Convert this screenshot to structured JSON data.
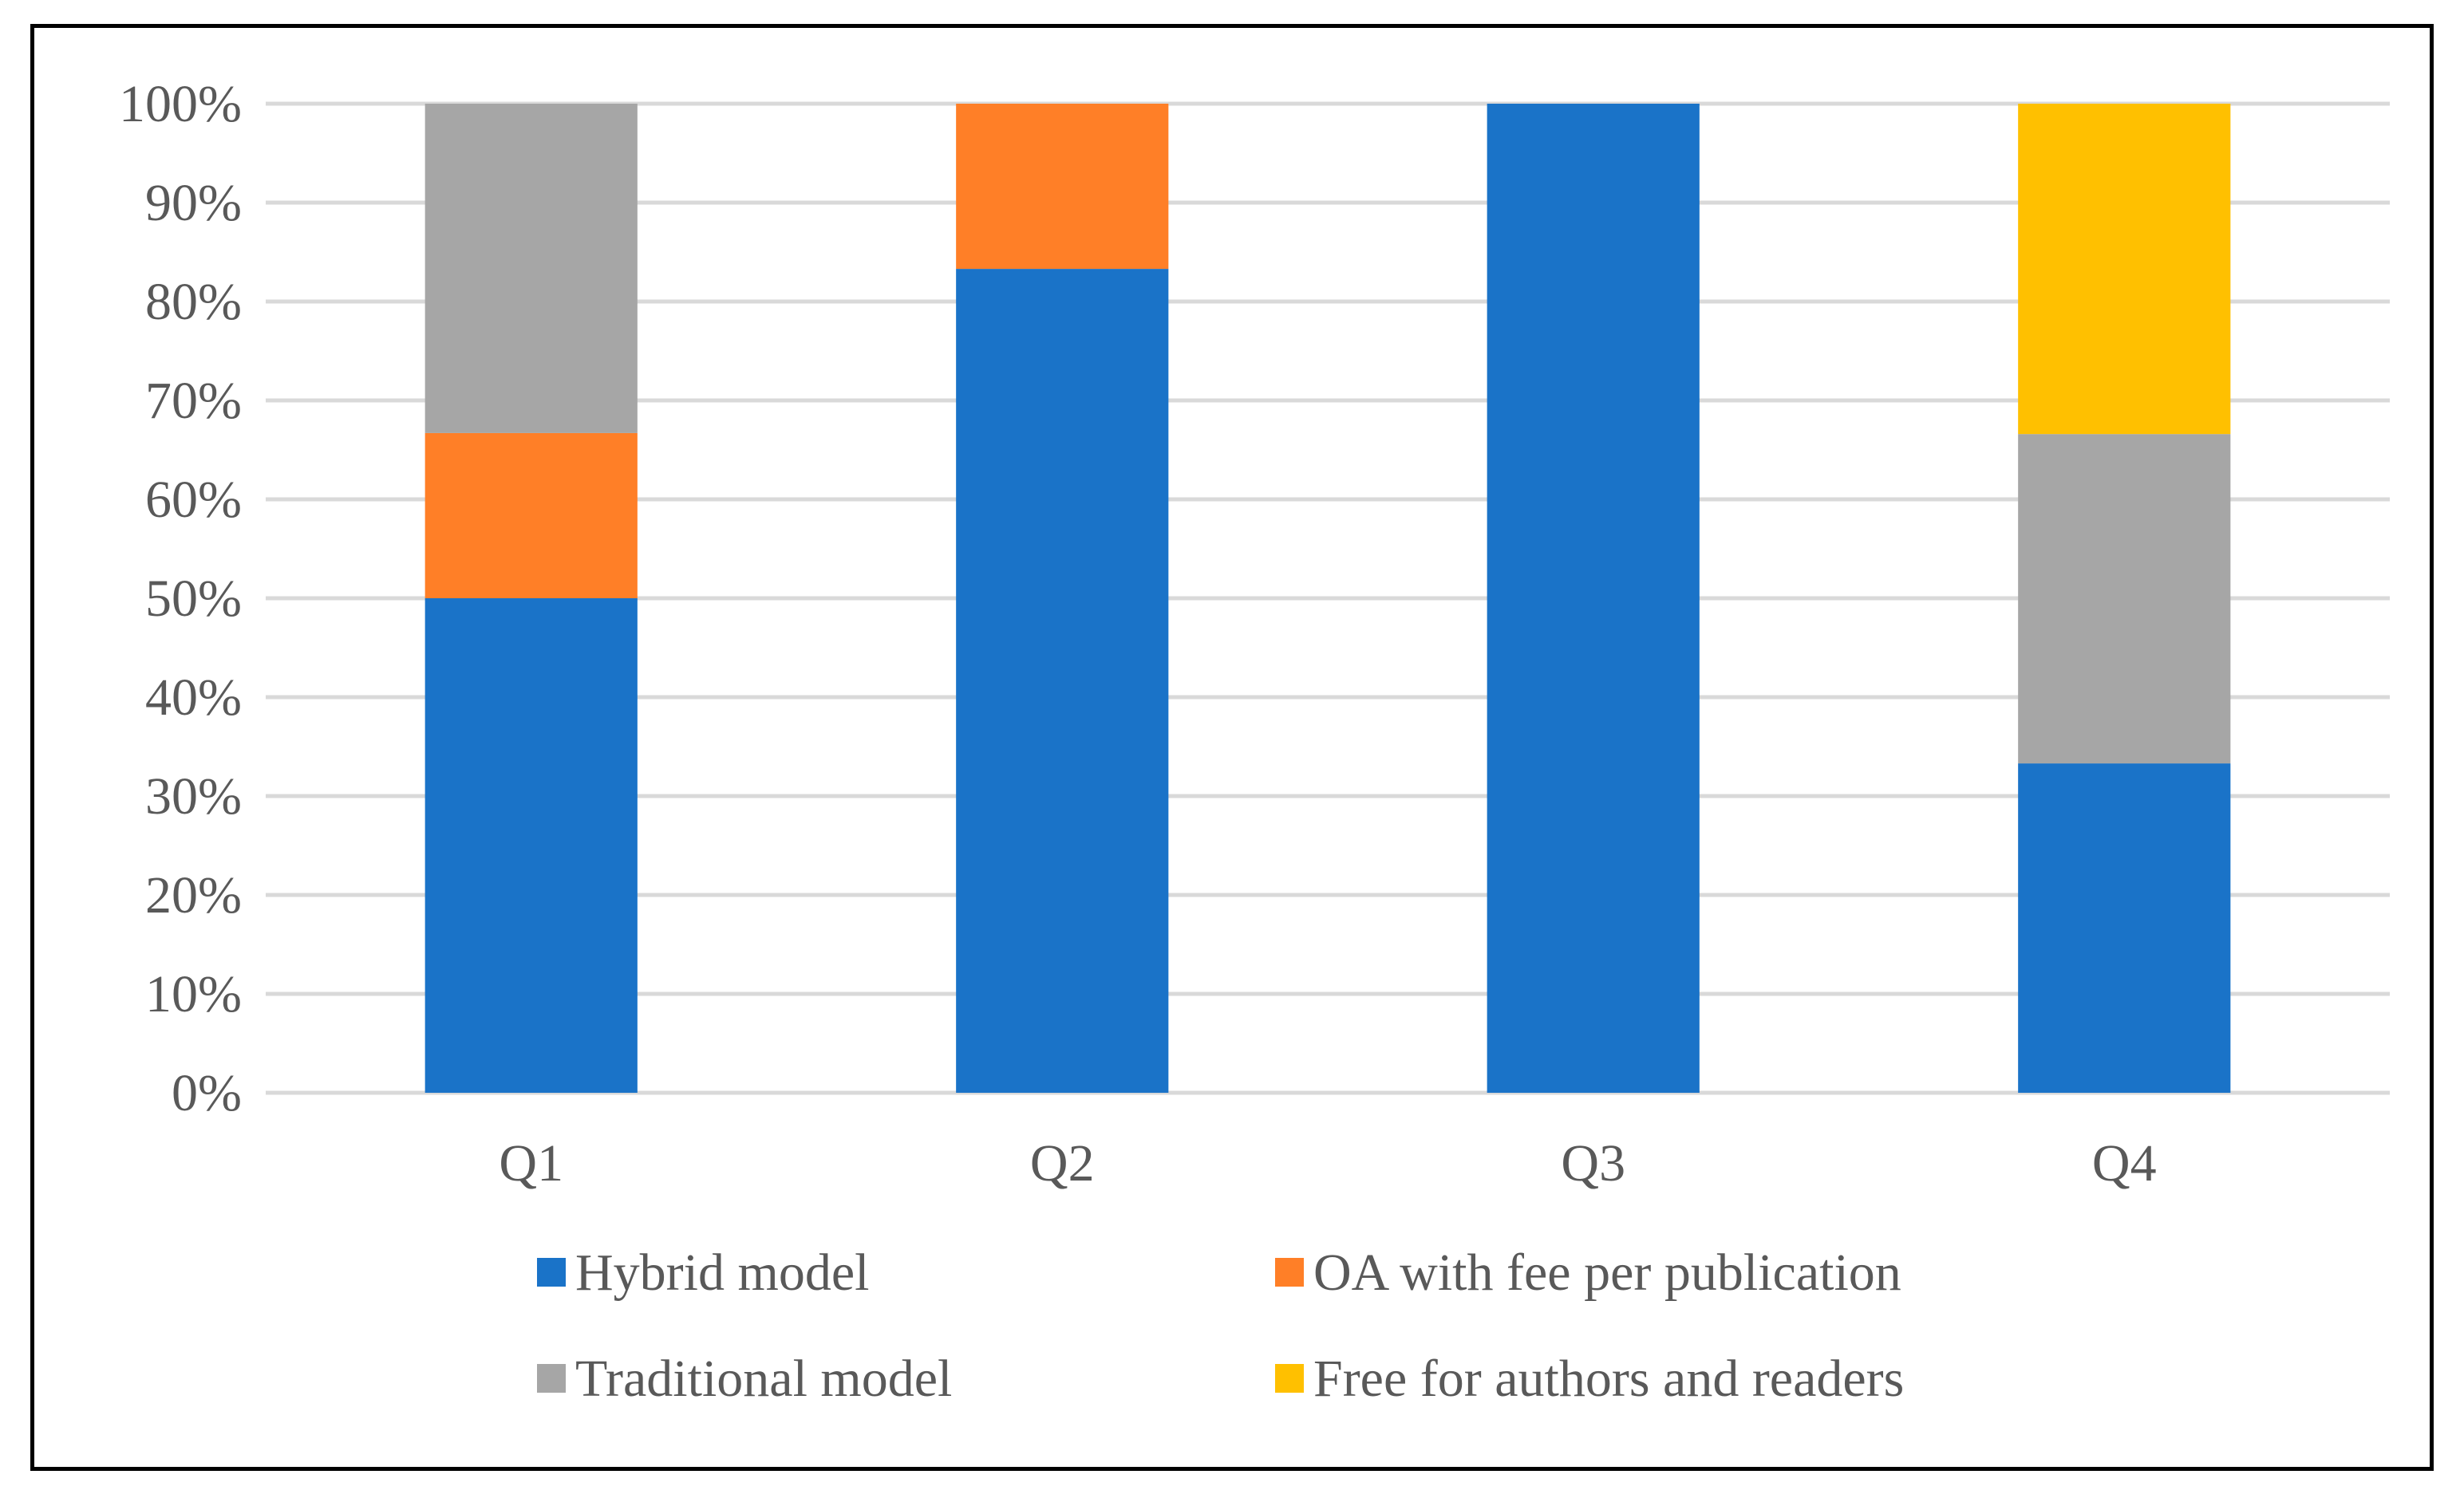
{
  "chart_data": {
    "type": "bar",
    "stacked": true,
    "percent_stacked": true,
    "categories": [
      "Q1",
      "Q2",
      "Q3",
      "Q4"
    ],
    "series": [
      {
        "name": "Hybrid model",
        "color": "#1A73C8",
        "values": [
          50.0,
          83.3,
          100.0,
          33.3
        ]
      },
      {
        "name": "OA with fee per publication",
        "color": "#FF7F27",
        "values": [
          16.7,
          16.7,
          0.0,
          0.0
        ]
      },
      {
        "name": "Traditional model",
        "color": "#A6A6A6",
        "values": [
          33.3,
          0.0,
          0.0,
          33.3
        ]
      },
      {
        "name": "Free for authors and readers",
        "color": "#FFC000",
        "values": [
          0.0,
          0.0,
          0.0,
          33.4
        ]
      }
    ],
    "ylim": [
      0,
      100
    ],
    "yticks": [
      "0%",
      "10%",
      "20%",
      "30%",
      "40%",
      "50%",
      "60%",
      "70%",
      "80%",
      "90%",
      "100%"
    ],
    "grid": true,
    "legend_position": "bottom",
    "title": "",
    "xlabel": "",
    "ylabel": ""
  }
}
